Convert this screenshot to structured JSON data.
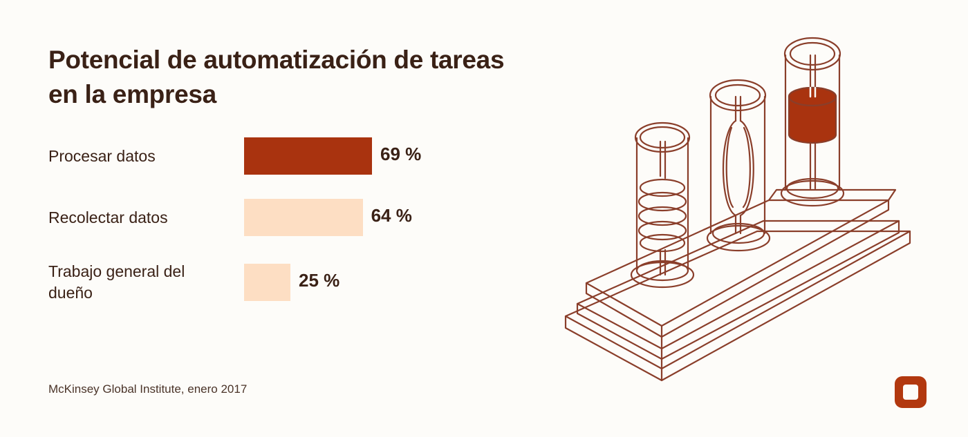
{
  "title": "Potencial de automatización de tareas en la empresa",
  "source": "McKinsey Global Institute, enero 2017",
  "colors": {
    "primary_bar": "#a9330f",
    "secondary_bar": "#fddec3",
    "text": "#3a2116",
    "outline": "#8a3e2a",
    "logo": "#b2380f"
  },
  "chart_data": {
    "type": "bar",
    "orientation": "horizontal",
    "title": "Potencial de automatización de tareas en la empresa",
    "categories": [
      "Procesar datos",
      "Recolectar datos",
      "Trabajo general del dueño"
    ],
    "values": [
      69,
      64,
      25
    ],
    "value_labels": [
      "69 %",
      "64 %",
      "25 %"
    ],
    "unit": "%",
    "highlight_index": 0,
    "xlim": [
      0,
      100
    ],
    "grid": false
  }
}
